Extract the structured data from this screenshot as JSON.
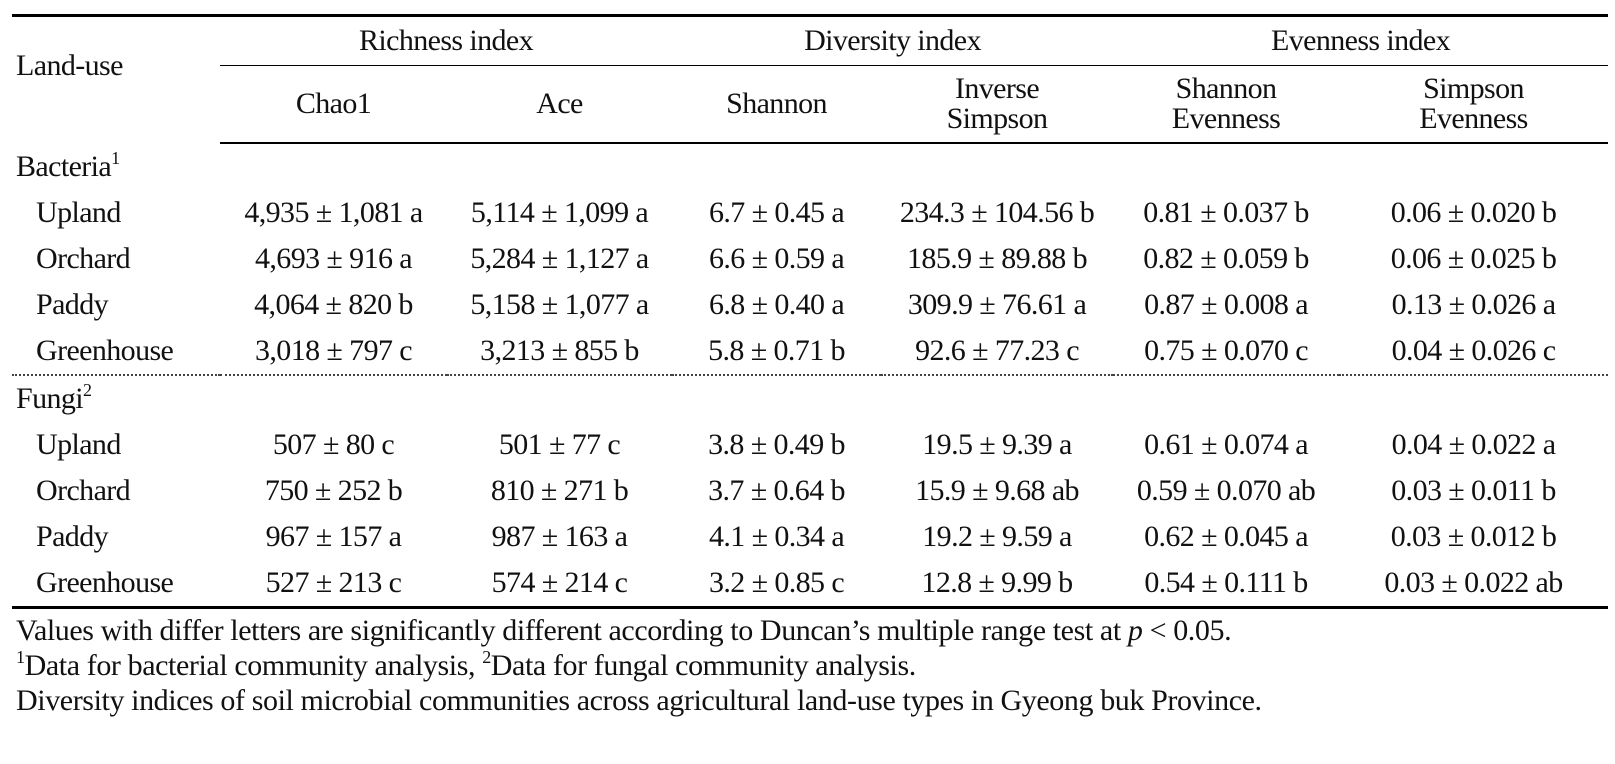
{
  "header": {
    "row_label": "Land-use",
    "groups": [
      {
        "label": "Richness index"
      },
      {
        "label": "Diversity index"
      },
      {
        "label": "Evenness index"
      }
    ],
    "columns": [
      {
        "line1": "Chao1",
        "line2": ""
      },
      {
        "line1": "Ace",
        "line2": ""
      },
      {
        "line1": "Shannon",
        "line2": ""
      },
      {
        "line1": "Inverse",
        "line2": "Simpson"
      },
      {
        "line1": "Shannon",
        "line2": "Evenness"
      },
      {
        "line1": "Simpson",
        "line2": "Evenness"
      }
    ]
  },
  "sections": [
    {
      "name": "Bacteria",
      "sup": "1",
      "rows": [
        {
          "label": "Upland",
          "values": [
            "4,935 ± 1,081 a",
            "5,114 ± 1,099 a",
            "6.7 ± 0.45 a",
            "234.3 ± 104.56 b",
            "0.81 ± 0.037 b",
            "0.06 ± 0.020 b"
          ]
        },
        {
          "label": "Orchard",
          "values": [
            "4,693 ± 916 a",
            "5,284 ± 1,127 a",
            "6.6 ± 0.59 a",
            "185.9 ± 89.88 b",
            "0.82 ± 0.059 b",
            "0.06 ± 0.025 b"
          ]
        },
        {
          "label": "Paddy",
          "values": [
            "4,064 ± 820 b",
            "5,158 ± 1,077 a",
            "6.8 ± 0.40 a",
            "309.9 ± 76.61 a",
            "0.87 ± 0.008 a",
            "0.13 ± 0.026 a"
          ]
        },
        {
          "label": "Greenhouse",
          "values": [
            "3,018 ± 797 c",
            "3,213 ± 855 b",
            "5.8 ± 0.71 b",
            "92.6 ± 77.23 c",
            "0.75 ± 0.070 c",
            "0.04 ± 0.026 c"
          ]
        }
      ]
    },
    {
      "name": "Fungi",
      "sup": "2",
      "rows": [
        {
          "label": "Upland",
          "values": [
            "507 ± 80 c",
            "501 ± 77 c",
            "3.8 ± 0.49 b",
            "19.5 ± 9.39 a",
            "0.61 ± 0.074 a",
            "0.04 ± 0.022 a"
          ]
        },
        {
          "label": "Orchard",
          "values": [
            "750 ± 252 b",
            "810 ± 271 b",
            "3.7 ± 0.64 b",
            "15.9 ± 9.68 ab",
            "0.59 ± 0.070 ab",
            "0.03 ± 0.011 b"
          ]
        },
        {
          "label": "Paddy",
          "values": [
            "967 ± 157 a",
            "987 ± 163 a",
            "4.1 ± 0.34 a",
            "19.2 ± 9.59 a",
            "0.62 ± 0.045 a",
            "0.03 ± 0.012 b"
          ]
        },
        {
          "label": "Greenhouse",
          "values": [
            "527 ± 213 c",
            "574 ± 214 c",
            "3.2 ± 0.85 c",
            "12.8 ± 9.99 b",
            "0.54 ± 0.111 b",
            "0.03 ± 0.022 ab"
          ]
        }
      ]
    }
  ],
  "notes": {
    "line1_pre": "Values with differ letters are significantly different according to Duncan’s multiple range test at ",
    "line1_p": "p",
    "line1_post": " < 0.05.",
    "line2_sup1": "1",
    "line2_part1": "Data for bacterial community analysis, ",
    "line2_sup2": "2",
    "line2_part2": "Data for fungal community analysis.",
    "line3": "Diversity indices of soil microbial communities across agricultural land-use types in Gyeong buk Province."
  }
}
